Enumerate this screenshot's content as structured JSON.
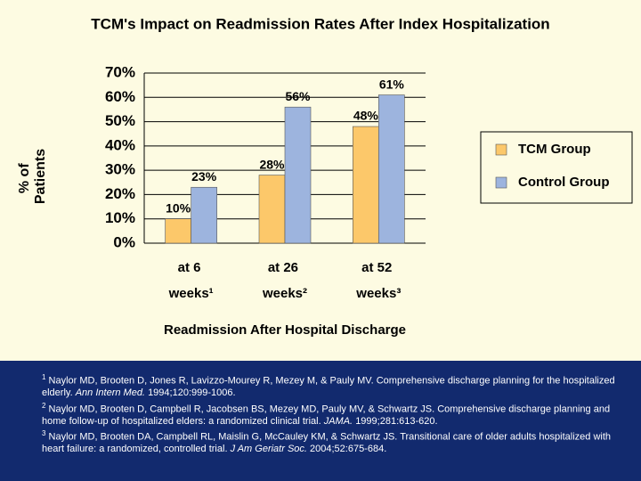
{
  "chart_data": {
    "type": "bar",
    "title": "TCM's Impact on Readmission Rates After Index Hospitalization",
    "y_label": "% of Patients",
    "x_label": "Readmission After Hospital Discharge",
    "categories": [
      "at 6 weeks¹",
      "at 26 weeks²",
      "at 52 weeks³"
    ],
    "series": [
      {
        "name": "TCM Group",
        "color": "#fcc86a",
        "values": [
          10,
          28,
          48
        ],
        "value_labels": [
          "10%",
          "28%",
          "48%"
        ]
      },
      {
        "name": "Control Group",
        "color": "#9db4de",
        "values": [
          23,
          56,
          61
        ],
        "value_labels": [
          "23%",
          "56%",
          "61%"
        ]
      }
    ],
    "ylim": [
      0,
      70
    ],
    "yticks": [
      {
        "value": 0,
        "label": "0%"
      },
      {
        "value": 10,
        "label": "10%"
      },
      {
        "value": 20,
        "label": "20%"
      },
      {
        "value": 30,
        "label": "30%"
      },
      {
        "value": 40,
        "label": "40%"
      },
      {
        "value": 50,
        "label": "50%"
      },
      {
        "value": 60,
        "label": "60%"
      },
      {
        "value": 70,
        "label": "70%"
      }
    ],
    "grid": true,
    "legend": "right"
  },
  "footnotes": [
    {
      "marker": "1",
      "text": "Naylor MD, Brooten D, Jones R, Lavizzo-Mourey R, Mezey M, & Pauly MV. Comprehensive discharge planning for the hospitalized elderly.",
      "journal": "Ann Intern Med.",
      "citation": "1994;120:999-1006."
    },
    {
      "marker": "2",
      "text": "Naylor MD, Brooten D, Campbell R, Jacobsen BS, Mezey MD, Pauly MV, & Schwartz JS. Comprehensive discharge planning and home follow-up of hospitalized elders: a randomized clinical trial.",
      "journal": "JAMA.",
      "citation": "1999;281:613-620."
    },
    {
      "marker": "3",
      "text": "Naylor MD, Brooten DA, Campbell RL, Maislin G, McCauley KM, & Schwartz JS. Transitional care of older adults hospitalized with heart failure: a randomized, controlled trial.",
      "journal": "J Am Geriatr Soc.",
      "citation": "2004;52:675-684."
    }
  ]
}
